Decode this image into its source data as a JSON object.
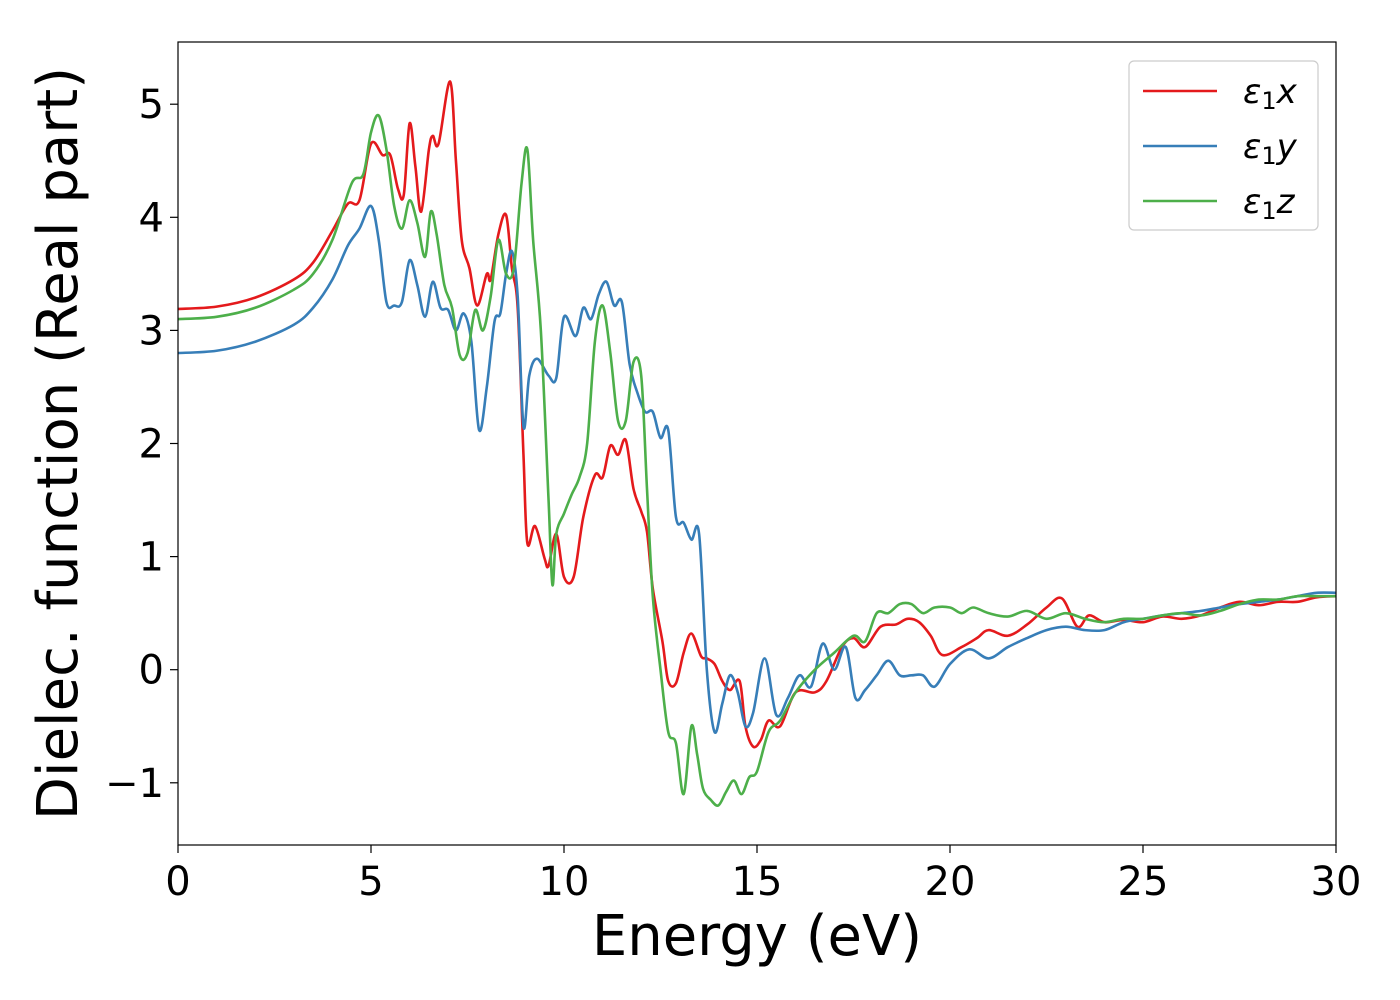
{
  "chart_data": {
    "type": "line",
    "title": "",
    "xlabel": "Energy (eV)",
    "ylabel": "Dielec. function (Real part)",
    "xlim": [
      0,
      30
    ],
    "ylim": [
      -1.55,
      5.55
    ],
    "xticks": [
      0,
      5,
      10,
      15,
      20,
      25,
      30
    ],
    "xtick_labels": [
      "0",
      "5",
      "10",
      "15",
      "20",
      "25",
      "30"
    ],
    "yticks": [
      -1,
      0,
      1,
      2,
      3,
      4,
      5
    ],
    "ytick_labels": [
      "−1",
      "0",
      "1",
      "2",
      "3",
      "4",
      "5"
    ],
    "grid": false,
    "legend": "top-right",
    "series": [
      {
        "name": "ε₁x",
        "name_main": "ε",
        "name_sub": "1",
        "name_suffix": "x",
        "color": "#e41a1c",
        "points": [
          [
            0,
            3.19
          ],
          [
            1,
            3.21
          ],
          [
            2,
            3.29
          ],
          [
            3,
            3.45
          ],
          [
            3.5,
            3.6
          ],
          [
            4,
            3.88
          ],
          [
            4.4,
            4.12
          ],
          [
            4.7,
            4.15
          ],
          [
            5,
            4.65
          ],
          [
            5.3,
            4.55
          ],
          [
            5.5,
            4.55
          ],
          [
            5.7,
            4.25
          ],
          [
            5.85,
            4.2
          ],
          [
            6,
            4.83
          ],
          [
            6.15,
            4.45
          ],
          [
            6.3,
            4.05
          ],
          [
            6.5,
            4.6
          ],
          [
            6.6,
            4.72
          ],
          [
            6.75,
            4.65
          ],
          [
            7.05,
            5.2
          ],
          [
            7.2,
            4.5
          ],
          [
            7.35,
            3.8
          ],
          [
            7.55,
            3.55
          ],
          [
            7.75,
            3.22
          ],
          [
            8.0,
            3.5
          ],
          [
            8.1,
            3.45
          ],
          [
            8.3,
            3.85
          ],
          [
            8.5,
            4.02
          ],
          [
            8.65,
            3.55
          ],
          [
            8.8,
            3.2
          ],
          [
            8.95,
            1.9
          ],
          [
            9.05,
            1.12
          ],
          [
            9.25,
            1.27
          ],
          [
            9.5,
            0.98
          ],
          [
            9.6,
            0.92
          ],
          [
            9.8,
            1.2
          ],
          [
            10.0,
            0.82
          ],
          [
            10.25,
            0.82
          ],
          [
            10.5,
            1.35
          ],
          [
            10.8,
            1.72
          ],
          [
            11.0,
            1.7
          ],
          [
            11.2,
            1.98
          ],
          [
            11.4,
            1.9
          ],
          [
            11.6,
            2.03
          ],
          [
            11.8,
            1.6
          ],
          [
            12.0,
            1.4
          ],
          [
            12.15,
            1.22
          ],
          [
            12.3,
            0.72
          ],
          [
            12.55,
            0.25
          ],
          [
            12.7,
            -0.1
          ],
          [
            12.9,
            -0.12
          ],
          [
            13.1,
            0.15
          ],
          [
            13.3,
            0.32
          ],
          [
            13.55,
            0.12
          ],
          [
            13.7,
            0.1
          ],
          [
            13.9,
            0.05
          ],
          [
            14.1,
            -0.1
          ],
          [
            14.3,
            -0.18
          ],
          [
            14.55,
            -0.1
          ],
          [
            14.7,
            -0.5
          ],
          [
            14.9,
            -0.68
          ],
          [
            15.1,
            -0.62
          ],
          [
            15.3,
            -0.45
          ],
          [
            15.6,
            -0.5
          ],
          [
            16.0,
            -0.2
          ],
          [
            16.5,
            -0.2
          ],
          [
            16.8,
            -0.1
          ],
          [
            17.2,
            0.2
          ],
          [
            17.5,
            0.28
          ],
          [
            17.8,
            0.2
          ],
          [
            18.2,
            0.38
          ],
          [
            18.6,
            0.4
          ],
          [
            18.9,
            0.45
          ],
          [
            19.2,
            0.42
          ],
          [
            19.5,
            0.3
          ],
          [
            19.8,
            0.13
          ],
          [
            20.3,
            0.2
          ],
          [
            20.7,
            0.28
          ],
          [
            21.0,
            0.35
          ],
          [
            21.5,
            0.3
          ],
          [
            22.0,
            0.4
          ],
          [
            22.5,
            0.55
          ],
          [
            22.9,
            0.63
          ],
          [
            23.3,
            0.38
          ],
          [
            23.6,
            0.48
          ],
          [
            24.0,
            0.42
          ],
          [
            24.5,
            0.44
          ],
          [
            25.0,
            0.42
          ],
          [
            25.5,
            0.47
          ],
          [
            26.0,
            0.45
          ],
          [
            26.5,
            0.48
          ],
          [
            27.0,
            0.55
          ],
          [
            27.5,
            0.6
          ],
          [
            28.0,
            0.57
          ],
          [
            28.5,
            0.6
          ],
          [
            29.0,
            0.6
          ],
          [
            29.5,
            0.64
          ],
          [
            30.0,
            0.65
          ]
        ]
      },
      {
        "name": "ε₁y",
        "name_main": "ε",
        "name_sub": "1",
        "name_suffix": "y",
        "color": "#377eb8",
        "points": [
          [
            0,
            2.8
          ],
          [
            1,
            2.82
          ],
          [
            2,
            2.9
          ],
          [
            3,
            3.05
          ],
          [
            3.5,
            3.2
          ],
          [
            4,
            3.45
          ],
          [
            4.4,
            3.75
          ],
          [
            4.7,
            3.9
          ],
          [
            5,
            4.1
          ],
          [
            5.2,
            3.8
          ],
          [
            5.4,
            3.25
          ],
          [
            5.6,
            3.22
          ],
          [
            5.8,
            3.25
          ],
          [
            6.0,
            3.62
          ],
          [
            6.2,
            3.4
          ],
          [
            6.4,
            3.12
          ],
          [
            6.6,
            3.43
          ],
          [
            6.8,
            3.2
          ],
          [
            7.0,
            3.18
          ],
          [
            7.2,
            3.0
          ],
          [
            7.4,
            3.15
          ],
          [
            7.6,
            2.9
          ],
          [
            7.8,
            2.12
          ],
          [
            8.0,
            2.5
          ],
          [
            8.2,
            3.08
          ],
          [
            8.35,
            3.15
          ],
          [
            8.5,
            3.5
          ],
          [
            8.65,
            3.7
          ],
          [
            8.8,
            3.3
          ],
          [
            8.95,
            2.15
          ],
          [
            9.1,
            2.6
          ],
          [
            9.3,
            2.75
          ],
          [
            9.6,
            2.6
          ],
          [
            9.8,
            2.58
          ],
          [
            10.0,
            3.12
          ],
          [
            10.3,
            2.95
          ],
          [
            10.5,
            3.2
          ],
          [
            10.7,
            3.1
          ],
          [
            10.9,
            3.32
          ],
          [
            11.1,
            3.43
          ],
          [
            11.3,
            3.22
          ],
          [
            11.5,
            3.25
          ],
          [
            11.7,
            2.7
          ],
          [
            11.9,
            2.45
          ],
          [
            12.1,
            2.28
          ],
          [
            12.3,
            2.28
          ],
          [
            12.5,
            2.05
          ],
          [
            12.7,
            2.12
          ],
          [
            12.9,
            1.35
          ],
          [
            13.1,
            1.3
          ],
          [
            13.3,
            1.15
          ],
          [
            13.5,
            1.2
          ],
          [
            13.7,
            0.0
          ],
          [
            13.9,
            -0.55
          ],
          [
            14.1,
            -0.3
          ],
          [
            14.3,
            -0.05
          ],
          [
            14.5,
            -0.2
          ],
          [
            14.7,
            -0.5
          ],
          [
            14.9,
            -0.38
          ],
          [
            15.2,
            0.1
          ],
          [
            15.5,
            -0.4
          ],
          [
            15.8,
            -0.25
          ],
          [
            16.1,
            -0.05
          ],
          [
            16.4,
            -0.15
          ],
          [
            16.7,
            0.23
          ],
          [
            17.0,
            0.0
          ],
          [
            17.3,
            0.2
          ],
          [
            17.55,
            -0.25
          ],
          [
            17.8,
            -0.18
          ],
          [
            18.1,
            -0.05
          ],
          [
            18.4,
            0.08
          ],
          [
            18.7,
            -0.05
          ],
          [
            19.0,
            -0.05
          ],
          [
            19.3,
            -0.05
          ],
          [
            19.6,
            -0.15
          ],
          [
            20.0,
            0.05
          ],
          [
            20.5,
            0.18
          ],
          [
            21.0,
            0.1
          ],
          [
            21.5,
            0.2
          ],
          [
            22.0,
            0.28
          ],
          [
            22.5,
            0.35
          ],
          [
            23.0,
            0.38
          ],
          [
            23.5,
            0.35
          ],
          [
            24.0,
            0.35
          ],
          [
            24.5,
            0.42
          ],
          [
            25.0,
            0.45
          ],
          [
            25.5,
            0.48
          ],
          [
            26.0,
            0.5
          ],
          [
            26.5,
            0.52
          ],
          [
            27.0,
            0.55
          ],
          [
            27.5,
            0.58
          ],
          [
            28.0,
            0.6
          ],
          [
            28.5,
            0.62
          ],
          [
            29.0,
            0.65
          ],
          [
            29.5,
            0.68
          ],
          [
            30.0,
            0.68
          ]
        ]
      },
      {
        "name": "ε₁z",
        "name_main": "ε",
        "name_sub": "1",
        "name_suffix": "z",
        "color": "#4daf4a",
        "points": [
          [
            0,
            3.1
          ],
          [
            1,
            3.12
          ],
          [
            2,
            3.2
          ],
          [
            3,
            3.36
          ],
          [
            3.5,
            3.5
          ],
          [
            4,
            3.8
          ],
          [
            4.5,
            4.3
          ],
          [
            4.8,
            4.38
          ],
          [
            5.0,
            4.75
          ],
          [
            5.2,
            4.9
          ],
          [
            5.4,
            4.6
          ],
          [
            5.6,
            4.1
          ],
          [
            5.8,
            3.9
          ],
          [
            6.0,
            4.15
          ],
          [
            6.2,
            3.95
          ],
          [
            6.4,
            3.65
          ],
          [
            6.55,
            4.05
          ],
          [
            6.7,
            3.85
          ],
          [
            6.9,
            3.4
          ],
          [
            7.1,
            3.2
          ],
          [
            7.3,
            2.78
          ],
          [
            7.5,
            2.8
          ],
          [
            7.7,
            3.18
          ],
          [
            7.9,
            3.0
          ],
          [
            8.1,
            3.3
          ],
          [
            8.3,
            3.8
          ],
          [
            8.5,
            3.5
          ],
          [
            8.7,
            3.55
          ],
          [
            8.9,
            4.3
          ],
          [
            9.05,
            4.6
          ],
          [
            9.2,
            3.8
          ],
          [
            9.4,
            3.0
          ],
          [
            9.6,
            1.5
          ],
          [
            9.7,
            0.75
          ],
          [
            9.8,
            1.2
          ],
          [
            10.0,
            1.38
          ],
          [
            10.2,
            1.55
          ],
          [
            10.4,
            1.7
          ],
          [
            10.6,
            2.0
          ],
          [
            10.8,
            2.9
          ],
          [
            11.0,
            3.22
          ],
          [
            11.2,
            2.8
          ],
          [
            11.4,
            2.2
          ],
          [
            11.6,
            2.2
          ],
          [
            11.8,
            2.72
          ],
          [
            12.0,
            2.6
          ],
          [
            12.15,
            1.6
          ],
          [
            12.3,
            0.65
          ],
          [
            12.5,
            0.0
          ],
          [
            12.7,
            -0.55
          ],
          [
            12.9,
            -0.65
          ],
          [
            13.1,
            -1.1
          ],
          [
            13.3,
            -0.5
          ],
          [
            13.45,
            -0.75
          ],
          [
            13.6,
            -1.05
          ],
          [
            13.8,
            -1.15
          ],
          [
            14.0,
            -1.2
          ],
          [
            14.2,
            -1.08
          ],
          [
            14.4,
            -0.98
          ],
          [
            14.6,
            -1.1
          ],
          [
            14.8,
            -0.95
          ],
          [
            15.0,
            -0.9
          ],
          [
            15.3,
            -0.55
          ],
          [
            15.6,
            -0.45
          ],
          [
            16.0,
            -0.2
          ],
          [
            16.5,
            0.0
          ],
          [
            17.0,
            0.15
          ],
          [
            17.5,
            0.3
          ],
          [
            17.8,
            0.25
          ],
          [
            18.1,
            0.5
          ],
          [
            18.4,
            0.5
          ],
          [
            18.7,
            0.58
          ],
          [
            19.0,
            0.58
          ],
          [
            19.3,
            0.5
          ],
          [
            19.6,
            0.55
          ],
          [
            20.0,
            0.55
          ],
          [
            20.3,
            0.5
          ],
          [
            20.6,
            0.55
          ],
          [
            21.0,
            0.5
          ],
          [
            21.5,
            0.47
          ],
          [
            22.0,
            0.52
          ],
          [
            22.5,
            0.45
          ],
          [
            23.0,
            0.5
          ],
          [
            23.5,
            0.45
          ],
          [
            24.0,
            0.42
          ],
          [
            24.5,
            0.45
          ],
          [
            25.0,
            0.45
          ],
          [
            25.5,
            0.48
          ],
          [
            26.0,
            0.5
          ],
          [
            26.5,
            0.48
          ],
          [
            27.0,
            0.52
          ],
          [
            27.5,
            0.58
          ],
          [
            28.0,
            0.62
          ],
          [
            28.5,
            0.62
          ],
          [
            29.0,
            0.65
          ],
          [
            29.5,
            0.65
          ],
          [
            30.0,
            0.65
          ]
        ]
      }
    ]
  }
}
